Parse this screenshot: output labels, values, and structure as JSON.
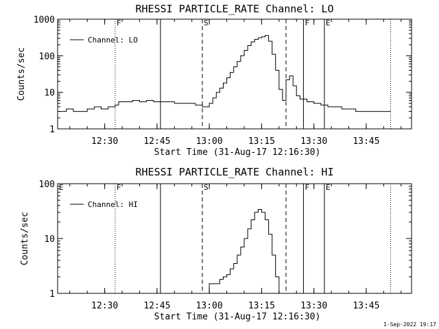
{
  "footer_stamp": "1-Sep-2022 19:17",
  "chart_data": [
    {
      "type": "line",
      "title": "RHESSI PARTICLE_RATE Channel: LO",
      "xlabel": "Start Time (31-Aug-17 12:16:30)",
      "ylabel": "Counts/sec",
      "x_ticks": [
        "12:30",
        "12:45",
        "13:00",
        "13:15",
        "13:30",
        "13:45"
      ],
      "y_ticks": [
        "1",
        "10",
        "100",
        "1000"
      ],
      "y_scale": "log",
      "xlim": [
        "12:16:30",
        "13:58:00"
      ],
      "ylim": [
        1,
        1000
      ],
      "legend": {
        "position": "top-left",
        "entries": [
          "Channel: LO"
        ]
      },
      "color": "#000000",
      "markers": [
        {
          "label": "F",
          "time": "12:33",
          "style": "dotted"
        },
        {
          "label": "",
          "time": "12:46",
          "style": "solid"
        },
        {
          "label": "S",
          "time": "12:58",
          "style": "dashed"
        },
        {
          "label": "",
          "time": "13:22",
          "style": "dashed"
        },
        {
          "label": "F",
          "time": "13:27",
          "style": "solid"
        },
        {
          "label": "E",
          "time": "13:33",
          "style": "solid"
        },
        {
          "label": "",
          "time": "13:52",
          "style": "dotted"
        }
      ],
      "series": [
        {
          "name": "Channel: LO",
          "x": [
            "12:17",
            "12:19",
            "12:21",
            "12:23",
            "12:25",
            "12:27",
            "12:29",
            "12:31",
            "12:33",
            "12:34",
            "12:36",
            "12:38",
            "12:40",
            "12:42",
            "12:44",
            "12:46",
            "12:48",
            "12:50",
            "12:52",
            "12:54",
            "12:56",
            "12:58",
            "12:59",
            "13:00",
            "13:01",
            "13:02",
            "13:03",
            "13:04",
            "13:05",
            "13:06",
            "13:07",
            "13:08",
            "13:09",
            "13:10",
            "13:11",
            "13:12",
            "13:13",
            "13:14",
            "13:15",
            "13:16",
            "13:17",
            "13:18",
            "13:19",
            "13:20",
            "13:21",
            "13:22",
            "13:23",
            "13:24",
            "13:25",
            "13:26",
            "13:28",
            "13:30",
            "13:32",
            "13:34",
            "13:36",
            "13:38",
            "13:40",
            "13:42",
            "13:44",
            "13:46",
            "13:48",
            "13:50",
            "13:52"
          ],
          "y": [
            3,
            3.5,
            3,
            3,
            3.5,
            4,
            3.5,
            4,
            4.5,
            5.5,
            5.5,
            6,
            5.5,
            6,
            5.5,
            5.5,
            5.5,
            5,
            5,
            5,
            4.5,
            4,
            4,
            5,
            7,
            10,
            13,
            18,
            25,
            35,
            50,
            70,
            100,
            140,
            190,
            240,
            280,
            310,
            330,
            360,
            250,
            110,
            40,
            12,
            6,
            22,
            28,
            15,
            8,
            6.5,
            5.5,
            5,
            4.5,
            4,
            4,
            3.5,
            3.5,
            3,
            3,
            3,
            3,
            3,
            3
          ]
        }
      ]
    },
    {
      "type": "line",
      "title": "RHESSI PARTICLE_RATE Channel: HI",
      "xlabel": "Start Time (31-Aug-17 12:16:30)",
      "ylabel": "Counts/sec",
      "x_ticks": [
        "12:30",
        "12:45",
        "13:00",
        "13:15",
        "13:30",
        "13:45"
      ],
      "y_ticks": [
        "1",
        "10",
        "100"
      ],
      "y_scale": "log",
      "xlim": [
        "12:16:30",
        "13:58:00"
      ],
      "ylim": [
        1,
        100
      ],
      "legend": {
        "position": "top-left",
        "entries": [
          "Channel: HI"
        ]
      },
      "color": "#000000",
      "markers": [
        {
          "label": "E",
          "time": "12:16:30",
          "style": "none"
        },
        {
          "label": "F",
          "time": "12:33",
          "style": "dotted"
        },
        {
          "label": "",
          "time": "12:46",
          "style": "solid"
        },
        {
          "label": "S",
          "time": "12:58",
          "style": "dashed"
        },
        {
          "label": "",
          "time": "13:22",
          "style": "dashed"
        },
        {
          "label": "F",
          "time": "13:27",
          "style": "solid"
        },
        {
          "label": "E",
          "time": "13:33",
          "style": "solid"
        },
        {
          "label": "",
          "time": "13:52",
          "style": "dotted"
        }
      ],
      "series": [
        {
          "name": "Channel: HI",
          "x": [
            "13:00",
            "13:00",
            "13:02",
            "13:03",
            "13:04",
            "13:05",
            "13:06",
            "13:07",
            "13:08",
            "13:09",
            "13:10",
            "13:11",
            "13:12",
            "13:13",
            "13:14",
            "13:15",
            "13:16",
            "13:17",
            "13:18",
            "13:19",
            "13:20"
          ],
          "y": [
            1,
            1.5,
            1.5,
            1.8,
            2,
            2.2,
            2.8,
            3.5,
            5,
            7,
            10,
            15,
            22,
            30,
            34,
            30,
            22,
            12,
            5,
            2,
            1
          ]
        }
      ]
    }
  ]
}
